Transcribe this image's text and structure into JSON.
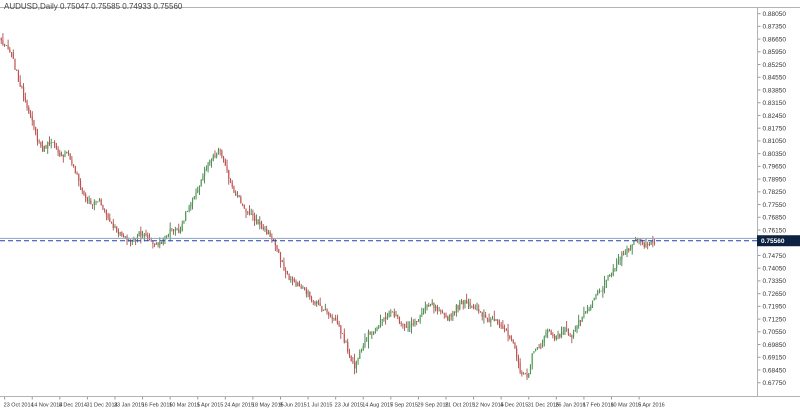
{
  "chart": {
    "title_line": "AUDUSD,Daily 0.75047 0.75585 0.74933 0.75560",
    "symbol": "AUDUSD",
    "timeframe": "Daily",
    "ohlc_display": {
      "open": "0.75047",
      "high": "0.75585",
      "low": "0.74933",
      "close": "0.75560"
    },
    "current_price_label": "0.75560",
    "colors": {
      "up": "#4c9a52",
      "up_wick": "#2f6b33",
      "down": "#c0504d",
      "down_wick": "#9e3b38",
      "price_line": "#2244aa",
      "bid_line": "#8aa3c4",
      "tag_bg": "#0d2240",
      "tag_text": "#ffffff",
      "axis_text": "#333333",
      "border": "#b3b3b3",
      "tick": "#999999",
      "background": "#ffffff"
    }
  },
  "chart_data": {
    "type": "candlestick",
    "title": "AUDUSD, Daily",
    "bars": 380,
    "ylim": [
      0.6702,
      0.8836
    ],
    "price_line": 0.7556,
    "bid_line_price": 0.7569,
    "grid": false,
    "y_ticks": [
      0.8805,
      0.8735,
      0.8665,
      0.8595,
      0.8525,
      0.8455,
      0.8385,
      0.8315,
      0.8245,
      0.8175,
      0.8105,
      0.8035,
      0.7965,
      0.7895,
      0.7825,
      0.7755,
      0.7685,
      0.7615,
      0.7545,
      0.7475,
      0.7405,
      0.7335,
      0.7265,
      0.7195,
      0.7125,
      0.7055,
      0.6985,
      0.6915,
      0.6845,
      0.6775
    ],
    "x_ticks": [
      {
        "bar": 2,
        "label": "23 Oct 2014"
      },
      {
        "bar": 18,
        "label": "14 Nov 2014"
      },
      {
        "bar": 34,
        "label": "8 Dec 2014"
      },
      {
        "bar": 50,
        "label": "31 Dec 2014"
      },
      {
        "bar": 66,
        "label": "23 Jan 2015"
      },
      {
        "bar": 82,
        "label": "16 Feb 2015"
      },
      {
        "bar": 98,
        "label": "10 Mar 2015"
      },
      {
        "bar": 114,
        "label": "1 Apr 2015"
      },
      {
        "bar": 130,
        "label": "24 Apr 2015"
      },
      {
        "bar": 146,
        "label": "18 May 2015"
      },
      {
        "bar": 162,
        "label": "9 Jun 2015"
      },
      {
        "bar": 178,
        "label": "1 Jul 2015"
      },
      {
        "bar": 194,
        "label": "23 Jul 2015"
      },
      {
        "bar": 210,
        "label": "14 Aug 2015"
      },
      {
        "bar": 226,
        "label": "7 Sep 2015"
      },
      {
        "bar": 242,
        "label": "29 Sep 2015"
      },
      {
        "bar": 258,
        "label": "21 Oct 2015"
      },
      {
        "bar": 274,
        "label": "12 Nov 2015"
      },
      {
        "bar": 290,
        "label": "4 Dec 2015"
      },
      {
        "bar": 306,
        "label": "31 Dec 2015"
      },
      {
        "bar": 322,
        "label": "26 Jan 2016"
      },
      {
        "bar": 338,
        "label": "17 Feb 2016"
      },
      {
        "bar": 354,
        "label": "10 Mar 2016"
      },
      {
        "bar": 370,
        "label": "5 Apr 2016"
      }
    ],
    "close_path_anchors": [
      [
        0,
        0.8655
      ],
      [
        6,
        0.8578
      ],
      [
        10,
        0.844
      ],
      [
        15,
        0.8303
      ],
      [
        20,
        0.8138
      ],
      [
        24,
        0.8055
      ],
      [
        29,
        0.811
      ],
      [
        34,
        0.8011
      ],
      [
        38,
        0.8055
      ],
      [
        43,
        0.7934
      ],
      [
        48,
        0.7808
      ],
      [
        52,
        0.7753
      ],
      [
        57,
        0.778
      ],
      [
        62,
        0.7681
      ],
      [
        66,
        0.7626
      ],
      [
        71,
        0.7571
      ],
      [
        76,
        0.7549
      ],
      [
        80,
        0.7604
      ],
      [
        85,
        0.7571
      ],
      [
        90,
        0.7533
      ],
      [
        94,
        0.756
      ],
      [
        99,
        0.7626
      ],
      [
        103,
        0.7604
      ],
      [
        108,
        0.7725
      ],
      [
        113,
        0.7808
      ],
      [
        117,
        0.7918
      ],
      [
        122,
        0.8
      ],
      [
        127,
        0.8055
      ],
      [
        130,
        0.7956
      ],
      [
        135,
        0.7835
      ],
      [
        140,
        0.7753
      ],
      [
        144,
        0.7698
      ],
      [
        149,
        0.7659
      ],
      [
        153,
        0.7615
      ],
      [
        158,
        0.756
      ],
      [
        163,
        0.7423
      ],
      [
        167,
        0.7351
      ],
      [
        172,
        0.7313
      ],
      [
        177,
        0.7274
      ],
      [
        181,
        0.723
      ],
      [
        186,
        0.7186
      ],
      [
        191,
        0.7148
      ],
      [
        195,
        0.7109
      ],
      [
        200,
        0.6983
      ],
      [
        205,
        0.6856
      ],
      [
        208,
        0.6955
      ],
      [
        213,
        0.7038
      ],
      [
        217,
        0.7065
      ],
      [
        222,
        0.7131
      ],
      [
        227,
        0.7164
      ],
      [
        231,
        0.712
      ],
      [
        236,
        0.7076
      ],
      [
        241,
        0.7109
      ],
      [
        245,
        0.7175
      ],
      [
        250,
        0.7203
      ],
      [
        255,
        0.7148
      ],
      [
        259,
        0.7131
      ],
      [
        264,
        0.7186
      ],
      [
        269,
        0.723
      ],
      [
        273,
        0.7203
      ],
      [
        278,
        0.7148
      ],
      [
        283,
        0.712
      ],
      [
        287,
        0.7131
      ],
      [
        292,
        0.7065
      ],
      [
        297,
        0.6983
      ],
      [
        301,
        0.6845
      ],
      [
        305,
        0.6801
      ],
      [
        308,
        0.6928
      ],
      [
        313,
        0.6983
      ],
      [
        317,
        0.7065
      ],
      [
        322,
        0.7021
      ],
      [
        327,
        0.7065
      ],
      [
        331,
        0.7038
      ],
      [
        336,
        0.712
      ],
      [
        341,
        0.7175
      ],
      [
        345,
        0.7258
      ],
      [
        350,
        0.7313
      ],
      [
        355,
        0.7395
      ],
      [
        359,
        0.7461
      ],
      [
        364,
        0.7516
      ],
      [
        369,
        0.7571
      ],
      [
        373,
        0.7533
      ],
      [
        379,
        0.7556
      ]
    ],
    "noise": {
      "wick": 0.0048,
      "jitter": 0.0016,
      "seed": 7
    }
  }
}
